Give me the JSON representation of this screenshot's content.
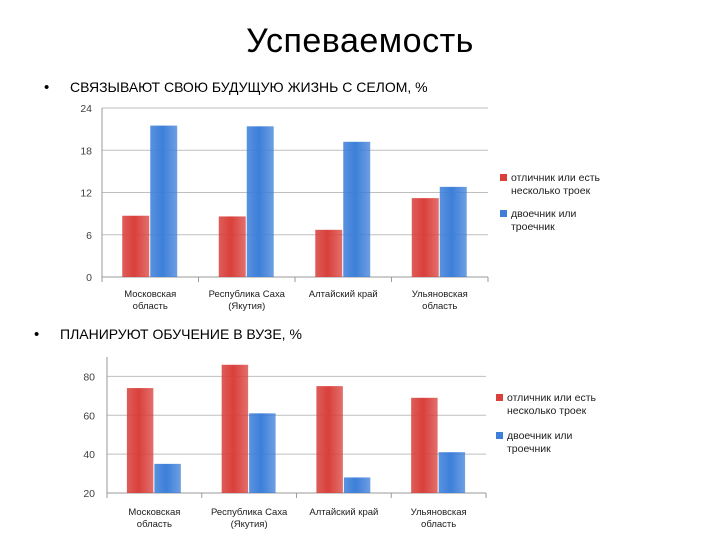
{
  "slide": {
    "title": "Успеваемость",
    "bullet_glyph": "•",
    "section1_title": "СВЯЗЫВАЮТ СВОЮ БУДУЩУЮ ЖИЗНЬ С СЕЛОМ, %",
    "section2_title": "ПЛАНИРУЮТ ОБУЧЕНИЕ В ВУЗЕ, %"
  },
  "colors": {
    "series1": "#d9403b",
    "series2": "#3d7fd9",
    "grid": "#bfbfbf",
    "axis": "#9a9a9a"
  },
  "chart_data": [
    {
      "type": "bar",
      "categories": [
        [
          "Московская",
          "область"
        ],
        [
          "Республика Саха",
          "(Якутия)"
        ],
        [
          "Алтайский край"
        ],
        [
          "Ульяновская",
          "область"
        ]
      ],
      "series": [
        {
          "name": [
            "отличник или есть",
            "несколько троек"
          ],
          "values": [
            8.7,
            8.6,
            6.7,
            11.2
          ]
        },
        {
          "name": [
            "двоечник или",
            "троечник"
          ],
          "values": [
            21.5,
            21.4,
            19.2,
            12.8
          ]
        }
      ],
      "yticks": [
        0,
        6,
        12,
        18,
        24
      ],
      "ylim": [
        0,
        24
      ],
      "grid": true,
      "legend": "right"
    },
    {
      "type": "bar",
      "categories": [
        [
          "Московская",
          "область"
        ],
        [
          "Республика Саха",
          "(Якутия)"
        ],
        [
          "Алтайский край"
        ],
        [
          "Ульяновская",
          "область"
        ]
      ],
      "series": [
        {
          "name": [
            "отличник или есть",
            "несколько троек"
          ],
          "values": [
            74,
            86,
            75,
            69
          ]
        },
        {
          "name": [
            "двоечник или",
            "троечник"
          ],
          "values": [
            35,
            61,
            28,
            41
          ]
        }
      ],
      "yticks": [
        20,
        40,
        60,
        80
      ],
      "ylim": [
        20,
        90
      ],
      "grid": true,
      "legend": "right"
    }
  ]
}
